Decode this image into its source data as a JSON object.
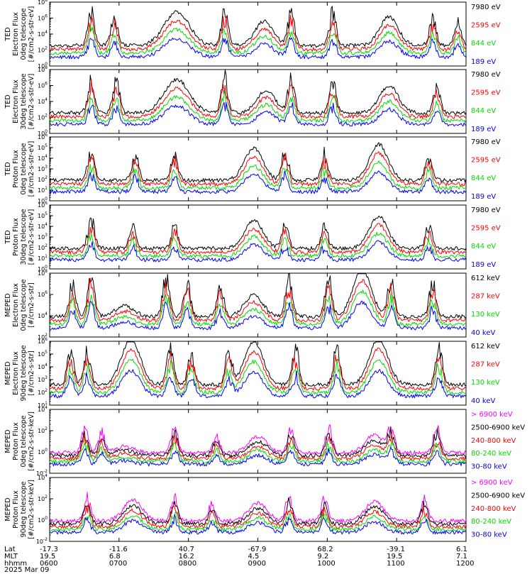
{
  "chart_data": {
    "type": "line",
    "date": "2025 Mar 09",
    "x": {
      "row_labels": [
        "Lat",
        "MLT",
        "hhmm"
      ],
      "ticks": [
        {
          "hhmm": "0600",
          "lat": "-17.3",
          "mlt": "19.5"
        },
        {
          "hhmm": "0700",
          "lat": "-11.6",
          "mlt": "6.8"
        },
        {
          "hhmm": "0800",
          "lat": "40.7",
          "mlt": "16.2"
        },
        {
          "hhmm": "0900",
          "lat": "-67.9",
          "mlt": "4.5"
        },
        {
          "hhmm": "1000",
          "lat": "68.2",
          "mlt": "9.2"
        },
        {
          "hhmm": "1100",
          "lat": "-39.1",
          "mlt": "19.5"
        },
        {
          "hhmm": "1200",
          "lat": "6.1",
          "mlt": "7.1"
        }
      ],
      "range": [
        "0600",
        "1200"
      ]
    },
    "panels": [
      {
        "id": "ted-e-0",
        "ylabel": [
          "TED",
          "Electron Flux",
          "0deg telescope",
          "[#/cm2-s-str-eV]"
        ],
        "ylog": [
          0,
          8
        ],
        "yticks": [
          "10^0",
          "10^2",
          "10^4",
          "10^6",
          "10^8"
        ],
        "channels": [
          {
            "label": "7980 eV",
            "color": "#000000"
          },
          {
            "label": "2595 eV",
            "color": "#ff0000"
          },
          {
            "label": "844 eV",
            "color": "#00dd00"
          },
          {
            "label": "189 eV",
            "color": "#0000ff"
          }
        ],
        "peaks": [
          {
            "t": 0.1,
            "amp": 4.6,
            "kind": "spike"
          },
          {
            "t": 0.155,
            "amp": 4.0,
            "kind": "spike"
          },
          {
            "t": 0.305,
            "amp": 4.2,
            "kind": "band"
          },
          {
            "t": 0.42,
            "amp": 5.0,
            "kind": "spike"
          },
          {
            "t": 0.515,
            "amp": 3.0,
            "kind": "arc"
          },
          {
            "t": 0.58,
            "amp": 4.6,
            "kind": "spike"
          },
          {
            "t": 0.68,
            "amp": 4.6,
            "kind": "spike"
          },
          {
            "t": 0.815,
            "amp": 3.6,
            "kind": "arc"
          },
          {
            "t": 0.92,
            "amp": 3.8,
            "kind": "spike"
          },
          {
            "t": 0.98,
            "amp": 3.2,
            "kind": "spike"
          }
        ]
      },
      {
        "id": "ted-e-30",
        "ylabel": [
          "TED",
          "Electron Flux",
          "30deg telescope",
          "[#/cm2-s-str-eV]"
        ],
        "ylog": [
          0,
          8
        ],
        "yticks": [
          "10^0",
          "10^2",
          "10^4",
          "10^6",
          "10^8"
        ],
        "channels": [
          {
            "label": "7980 eV",
            "color": "#000000"
          },
          {
            "label": "2595 eV",
            "color": "#ff0000"
          },
          {
            "label": "844 eV",
            "color": "#00dd00"
          },
          {
            "label": "189 eV",
            "color": "#0000ff"
          }
        ],
        "peaks": [
          {
            "t": 0.1,
            "amp": 4.8,
            "kind": "spike"
          },
          {
            "t": 0.16,
            "amp": 4.4,
            "kind": "spike"
          },
          {
            "t": 0.305,
            "amp": 4.2,
            "kind": "band"
          },
          {
            "t": 0.42,
            "amp": 5.0,
            "kind": "spike"
          },
          {
            "t": 0.52,
            "amp": 2.8,
            "kind": "arc"
          },
          {
            "t": 0.58,
            "amp": 4.6,
            "kind": "spike"
          },
          {
            "t": 0.68,
            "amp": 4.6,
            "kind": "spike"
          },
          {
            "t": 0.815,
            "amp": 3.4,
            "kind": "arc"
          },
          {
            "t": 0.93,
            "amp": 3.8,
            "kind": "spike"
          }
        ]
      },
      {
        "id": "ted-p-0",
        "ylabel": [
          "TED",
          "Proton Flux",
          "0deg telescope",
          "[#/cm2-s-str-eV]"
        ],
        "ylog": [
          0,
          6
        ],
        "yticks": [
          "10^0",
          "10^1",
          "10^2",
          "10^3",
          "10^4",
          "10^5",
          "10^6"
        ],
        "channels": [
          {
            "label": "7980 eV",
            "color": "#000000"
          },
          {
            "label": "2595 eV",
            "color": "#ff0000"
          },
          {
            "label": "844 eV",
            "color": "#00dd00"
          },
          {
            "label": "189 eV",
            "color": "#0000ff"
          }
        ],
        "peaks": [
          {
            "t": 0.1,
            "amp": 3.2,
            "kind": "spike"
          },
          {
            "t": 0.205,
            "amp": 2.6,
            "kind": "spike"
          },
          {
            "t": 0.3,
            "amp": 3.0,
            "kind": "spike"
          },
          {
            "t": 0.49,
            "amp": 3.0,
            "kind": "arc"
          },
          {
            "t": 0.565,
            "amp": 3.2,
            "kind": "spike"
          },
          {
            "t": 0.66,
            "amp": 2.8,
            "kind": "spike"
          },
          {
            "t": 0.79,
            "amp": 3.4,
            "kind": "arc"
          },
          {
            "t": 0.91,
            "amp": 2.8,
            "kind": "spike"
          }
        ]
      },
      {
        "id": "ted-p-30",
        "ylabel": [
          "TED",
          "Proton Flux",
          "30deg telescope",
          "[#/cm2-s-str-eV]"
        ],
        "ylog": [
          0,
          6
        ],
        "yticks": [
          "10^0",
          "10^1",
          "10^2",
          "10^3",
          "10^4",
          "10^5",
          "10^6"
        ],
        "channels": [
          {
            "label": "7980 eV",
            "color": "#000000"
          },
          {
            "label": "2595 eV",
            "color": "#ff0000"
          },
          {
            "label": "844 eV",
            "color": "#00dd00"
          },
          {
            "label": "189 eV",
            "color": "#0000ff"
          }
        ],
        "peaks": [
          {
            "t": 0.1,
            "amp": 3.0,
            "kind": "spike"
          },
          {
            "t": 0.2,
            "amp": 2.4,
            "kind": "spike"
          },
          {
            "t": 0.3,
            "amp": 2.6,
            "kind": "spike"
          },
          {
            "t": 0.49,
            "amp": 2.6,
            "kind": "arc"
          },
          {
            "t": 0.565,
            "amp": 2.6,
            "kind": "spike"
          },
          {
            "t": 0.66,
            "amp": 2.4,
            "kind": "spike"
          },
          {
            "t": 0.79,
            "amp": 3.0,
            "kind": "arc"
          },
          {
            "t": 0.91,
            "amp": 2.4,
            "kind": "spike"
          }
        ]
      },
      {
        "id": "meped-e-0",
        "ylabel": [
          "MEPED",
          "Electron Flux",
          "0deg telescope",
          "[#/cm2-s-str]"
        ],
        "ylog": [
          2,
          8
        ],
        "yticks": [
          "10^2",
          "10^4",
          "10^6",
          "10^8"
        ],
        "channels": [
          {
            "label": "612 keV",
            "color": "#000000"
          },
          {
            "label": "287 keV",
            "color": "#ff0000"
          },
          {
            "label": "130 keV",
            "color": "#00dd00"
          },
          {
            "label": "40 keV",
            "color": "#0000ff"
          }
        ],
        "peaks": [
          {
            "t": 0.055,
            "amp": 3.4,
            "kind": "spike"
          },
          {
            "t": 0.1,
            "amp": 4.4,
            "kind": "spike"
          },
          {
            "t": 0.18,
            "amp": 1.0,
            "kind": "arc"
          },
          {
            "t": 0.28,
            "amp": 4.2,
            "kind": "spike"
          },
          {
            "t": 0.33,
            "amp": 3.4,
            "kind": "spike"
          },
          {
            "t": 0.41,
            "amp": 3.2,
            "kind": "spike"
          },
          {
            "t": 0.49,
            "amp": 2.0,
            "kind": "arc"
          },
          {
            "t": 0.575,
            "amp": 4.0,
            "kind": "spike"
          },
          {
            "t": 0.67,
            "amp": 4.0,
            "kind": "spike"
          },
          {
            "t": 0.75,
            "amp": 4.4,
            "kind": "arc"
          },
          {
            "t": 0.82,
            "amp": 3.8,
            "kind": "spike"
          },
          {
            "t": 0.92,
            "amp": 3.6,
            "kind": "spike"
          }
        ]
      },
      {
        "id": "meped-e-90",
        "ylabel": [
          "MEPED",
          "Electron Flux",
          "90deg telescope",
          "[#/cm2-s-str]"
        ],
        "ylog": [
          1,
          6
        ],
        "yticks": [
          "10^1",
          "10^2",
          "10^3",
          "10^4",
          "10^5",
          "10^6"
        ],
        "channels": [
          {
            "label": "612 keV",
            "color": "#000000"
          },
          {
            "label": "287 keV",
            "color": "#ff0000"
          },
          {
            "label": "130 keV",
            "color": "#00dd00"
          },
          {
            "label": "40 keV",
            "color": "#0000ff"
          }
        ],
        "peaks": [
          {
            "t": 0.05,
            "amp": 3.0,
            "kind": "spike"
          },
          {
            "t": 0.09,
            "amp": 3.0,
            "kind": "spike"
          },
          {
            "t": 0.195,
            "amp": 3.6,
            "kind": "arc"
          },
          {
            "t": 0.29,
            "amp": 3.2,
            "kind": "spike"
          },
          {
            "t": 0.34,
            "amp": 3.0,
            "kind": "spike"
          },
          {
            "t": 0.43,
            "amp": 2.8,
            "kind": "spike"
          },
          {
            "t": 0.49,
            "amp": 3.4,
            "kind": "arc"
          },
          {
            "t": 0.59,
            "amp": 3.2,
            "kind": "spike"
          },
          {
            "t": 0.69,
            "amp": 3.4,
            "kind": "spike"
          },
          {
            "t": 0.79,
            "amp": 3.6,
            "kind": "arc"
          },
          {
            "t": 0.935,
            "amp": 3.2,
            "kind": "spike"
          }
        ]
      },
      {
        "id": "meped-p-0",
        "ylabel": [
          "MEPED",
          "Proton Flux",
          "0deg telescope",
          "[#/cm2-s-str-keV]"
        ],
        "ylog": [
          -2,
          6
        ],
        "yticks": [
          "10^-2",
          "10^0",
          "10^2",
          "10^4"
        ],
        "channels": [
          {
            "label": "> 6900 keV",
            "color": "#ff00ff"
          },
          {
            "label": "2500-6900 keV",
            "color": "#000000"
          },
          {
            "label": "240-800 keV",
            "color": "#ff0000"
          },
          {
            "label": "80-240 keV",
            "color": "#00dd00"
          },
          {
            "label": "30-80 keV",
            "color": "#0000ff"
          }
        ],
        "peaks": [
          {
            "t": 0.085,
            "amp": 3.6,
            "kind": "spike"
          },
          {
            "t": 0.125,
            "amp": 2.8,
            "kind": "spike"
          },
          {
            "t": 0.18,
            "amp": 0.8,
            "kind": "arc"
          },
          {
            "t": 0.3,
            "amp": 3.6,
            "kind": "spike"
          },
          {
            "t": 0.4,
            "amp": 2.4,
            "kind": "spike"
          },
          {
            "t": 0.5,
            "amp": 2.0,
            "kind": "arc"
          },
          {
            "t": 0.58,
            "amp": 3.6,
            "kind": "spike"
          },
          {
            "t": 0.67,
            "amp": 3.4,
            "kind": "spike"
          },
          {
            "t": 0.78,
            "amp": 2.2,
            "kind": "arc"
          },
          {
            "t": 0.82,
            "amp": 3.4,
            "kind": "spike"
          },
          {
            "t": 0.93,
            "amp": 3.4,
            "kind": "spike"
          }
        ]
      },
      {
        "id": "meped-p-90",
        "ylabel": [
          "MEPED",
          "Proton Flux",
          "90deg telescope",
          "[#/cm2-s-str-keV]"
        ],
        "ylog": [
          -2,
          6
        ],
        "yticks": [
          "10^-2",
          "10^0",
          "10^2",
          "10^4"
        ],
        "channels": [
          {
            "label": "> 6900 keV",
            "color": "#ff00ff"
          },
          {
            "label": "2500-6900 keV",
            "color": "#000000"
          },
          {
            "label": "240-800 keV",
            "color": "#ff0000"
          },
          {
            "label": "80-240 keV",
            "color": "#00dd00"
          },
          {
            "label": "30-80 keV",
            "color": "#0000ff"
          }
        ],
        "peaks": [
          {
            "t": 0.09,
            "amp": 3.4,
            "kind": "spike"
          },
          {
            "t": 0.2,
            "amp": 2.6,
            "kind": "arc"
          },
          {
            "t": 0.3,
            "amp": 3.4,
            "kind": "spike"
          },
          {
            "t": 0.39,
            "amp": 2.4,
            "kind": "spike"
          },
          {
            "t": 0.5,
            "amp": 2.2,
            "kind": "arc"
          },
          {
            "t": 0.575,
            "amp": 3.4,
            "kind": "spike"
          },
          {
            "t": 0.66,
            "amp": 3.0,
            "kind": "spike"
          },
          {
            "t": 0.78,
            "amp": 2.4,
            "kind": "arc"
          },
          {
            "t": 0.9,
            "amp": 3.2,
            "kind": "spike"
          }
        ]
      }
    ]
  }
}
